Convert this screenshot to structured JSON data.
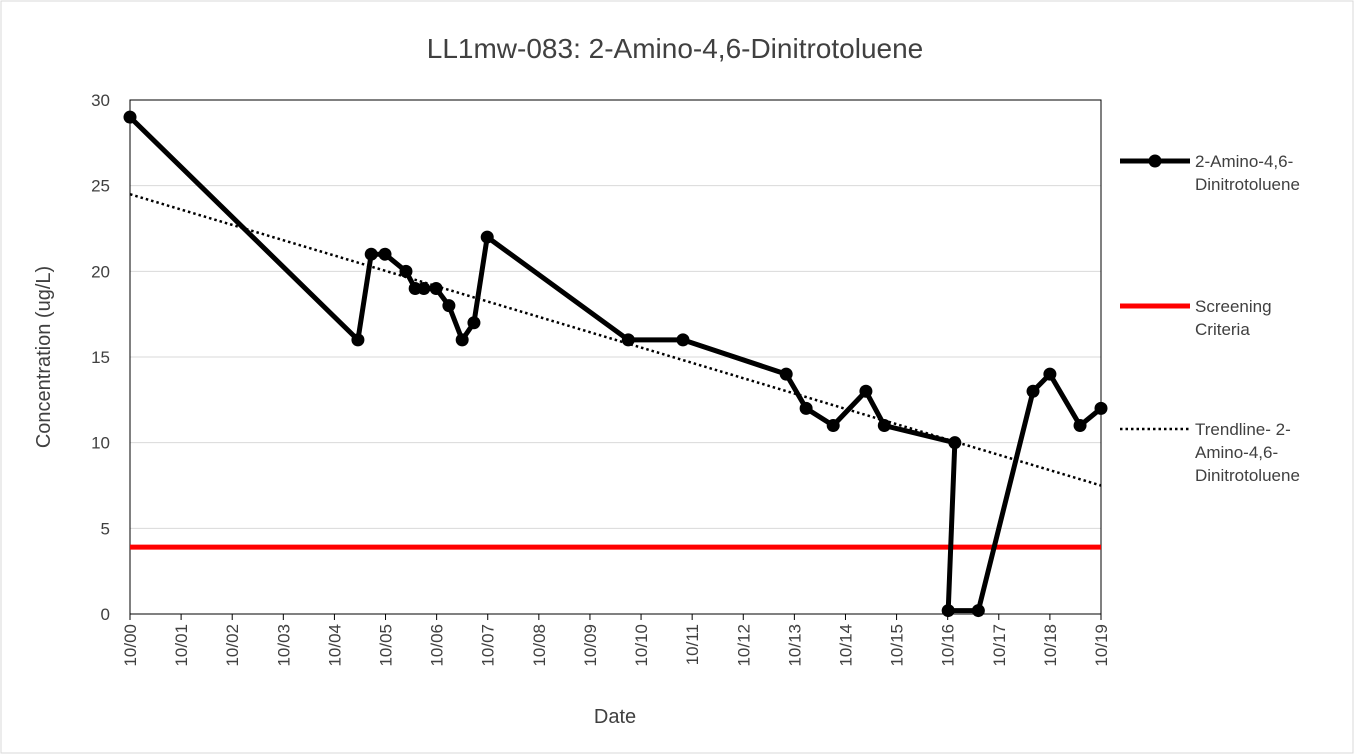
{
  "chart_data": {
    "type": "line",
    "title": "LL1mw-083: 2-Amino-4,6-Dinitrotoluene",
    "x_label": "Date",
    "y_label": "Concentration (ug/L)",
    "xlim": [
      2000.75,
      2019.75
    ],
    "xticks": [
      {
        "value": 2000.75,
        "label": "10/00"
      },
      {
        "value": 2001.75,
        "label": "10/01"
      },
      {
        "value": 2002.75,
        "label": "10/02"
      },
      {
        "value": 2003.75,
        "label": "10/03"
      },
      {
        "value": 2004.75,
        "label": "10/04"
      },
      {
        "value": 2005.75,
        "label": "10/05"
      },
      {
        "value": 2006.75,
        "label": "10/06"
      },
      {
        "value": 2007.75,
        "label": "10/07"
      },
      {
        "value": 2008.75,
        "label": "10/08"
      },
      {
        "value": 2009.75,
        "label": "10/09"
      },
      {
        "value": 2010.75,
        "label": "10/10"
      },
      {
        "value": 2011.75,
        "label": "10/11"
      },
      {
        "value": 2012.75,
        "label": "10/12"
      },
      {
        "value": 2013.75,
        "label": "10/13"
      },
      {
        "value": 2014.75,
        "label": "10/14"
      },
      {
        "value": 2015.75,
        "label": "10/15"
      },
      {
        "value": 2016.75,
        "label": "10/16"
      },
      {
        "value": 2017.75,
        "label": "10/17"
      },
      {
        "value": 2018.75,
        "label": "10/18"
      },
      {
        "value": 2019.75,
        "label": "10/19"
      }
    ],
    "ylim": [
      0,
      30
    ],
    "yticks": [
      0,
      5,
      10,
      15,
      20,
      25,
      30
    ],
    "grid": true,
    "legend": "right",
    "series": [
      {
        "name": "2-Amino-4,6-Dinitrotoluene",
        "color": "#000000",
        "style": "solid-markers",
        "x": [
          2000.75,
          2005.21,
          2005.47,
          2005.74,
          2006.15,
          2006.33,
          2006.5,
          2006.74,
          2006.99,
          2007.25,
          2007.48,
          2007.74,
          2010.5,
          2011.57,
          2013.59,
          2013.98,
          2014.51,
          2015.15,
          2015.51,
          2016.89,
          2016.76,
          2017.35,
          2018.42,
          2018.75,
          2019.34,
          2019.75
        ],
        "values": [
          29,
          16,
          21,
          21,
          20,
          19,
          19,
          19,
          18,
          16,
          17,
          22,
          16,
          16,
          14,
          12,
          11,
          13,
          11,
          10,
          0.2,
          0.2,
          13,
          14,
          11,
          12
        ]
      },
      {
        "name": "Screening Criteria",
        "color": "#ff0000",
        "style": "solid",
        "x": [
          2000.75,
          2019.75
        ],
        "values": [
          3.9,
          3.9
        ]
      },
      {
        "name": "Trendline- 2-Amino-4,6-Dinitrotoluene",
        "color": "#000000",
        "style": "dotted",
        "x": [
          2000.75,
          2019.75
        ],
        "values": [
          24.5,
          7.5
        ]
      }
    ]
  }
}
